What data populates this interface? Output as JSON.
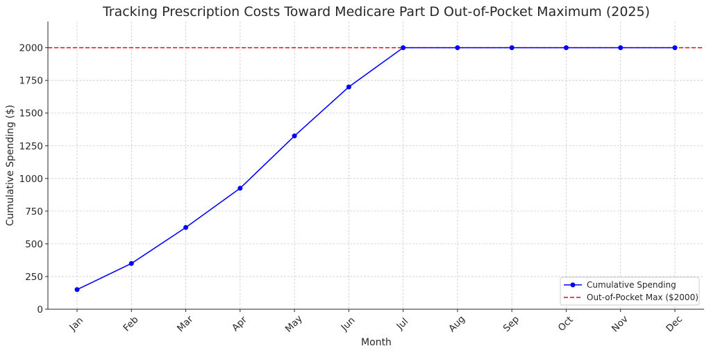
{
  "chart_data": {
    "type": "line",
    "title": "Tracking Prescription Costs Toward Medicare Part D Out-of-Pocket Maximum (2025)",
    "xlabel": "Month",
    "ylabel": "Cumulative Spending ($)",
    "categories": [
      "Jan",
      "Feb",
      "Mar",
      "Apr",
      "May",
      "Jun",
      "Jul",
      "Aug",
      "Sep",
      "Oct",
      "Nov",
      "Dec"
    ],
    "series": [
      {
        "name": "Cumulative Spending",
        "color": "#0000ff",
        "marker": "circle",
        "values": [
          150,
          350,
          625,
          925,
          1325,
          1700,
          2000,
          2000,
          2000,
          2000,
          2000,
          2000
        ]
      }
    ],
    "reference_lines": [
      {
        "name": "Out-of-Pocket Max ($2000)",
        "value": 2000,
        "color": "#ff0000",
        "style": "dashed"
      }
    ],
    "ylim": [
      0,
      2200
    ],
    "yticks": [
      0,
      250,
      500,
      750,
      1000,
      1250,
      1500,
      1750,
      2000
    ],
    "grid": true,
    "legend_position": "bottom-right"
  }
}
